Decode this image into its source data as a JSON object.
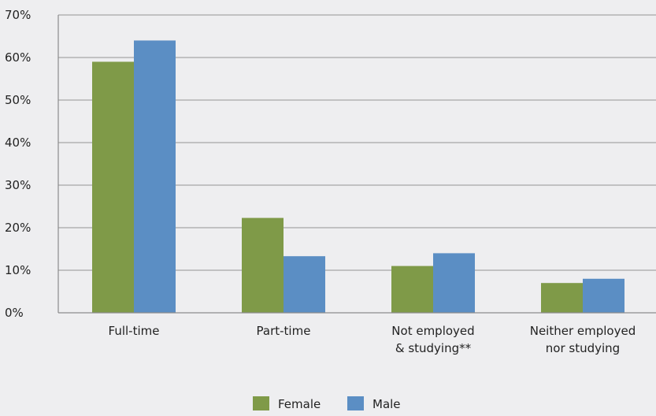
{
  "chart_data": {
    "type": "bar",
    "categories": [
      [
        "Full-time"
      ],
      [
        "Part-time"
      ],
      [
        "Not employed",
        "& studying**"
      ],
      [
        "Neither employed",
        "nor studying"
      ]
    ],
    "series": [
      {
        "name": "Female",
        "color": "#7f9a48",
        "values": [
          59,
          22.3,
          11,
          7
        ]
      },
      {
        "name": "Male",
        "color": "#5b8ec4",
        "values": [
          64,
          13.3,
          14,
          8
        ]
      }
    ],
    "ylim": [
      0,
      70
    ],
    "yticks": [
      0,
      10,
      20,
      30,
      40,
      50,
      60,
      70
    ],
    "ytick_format": "{v}%",
    "grid": true,
    "legend_position": "bottom-center",
    "title": "",
    "xlabel": "",
    "ylabel": "",
    "colors": {
      "background": "#eeeef0",
      "grid": "#a6a6a6",
      "axis": "#8c8c8c"
    }
  }
}
